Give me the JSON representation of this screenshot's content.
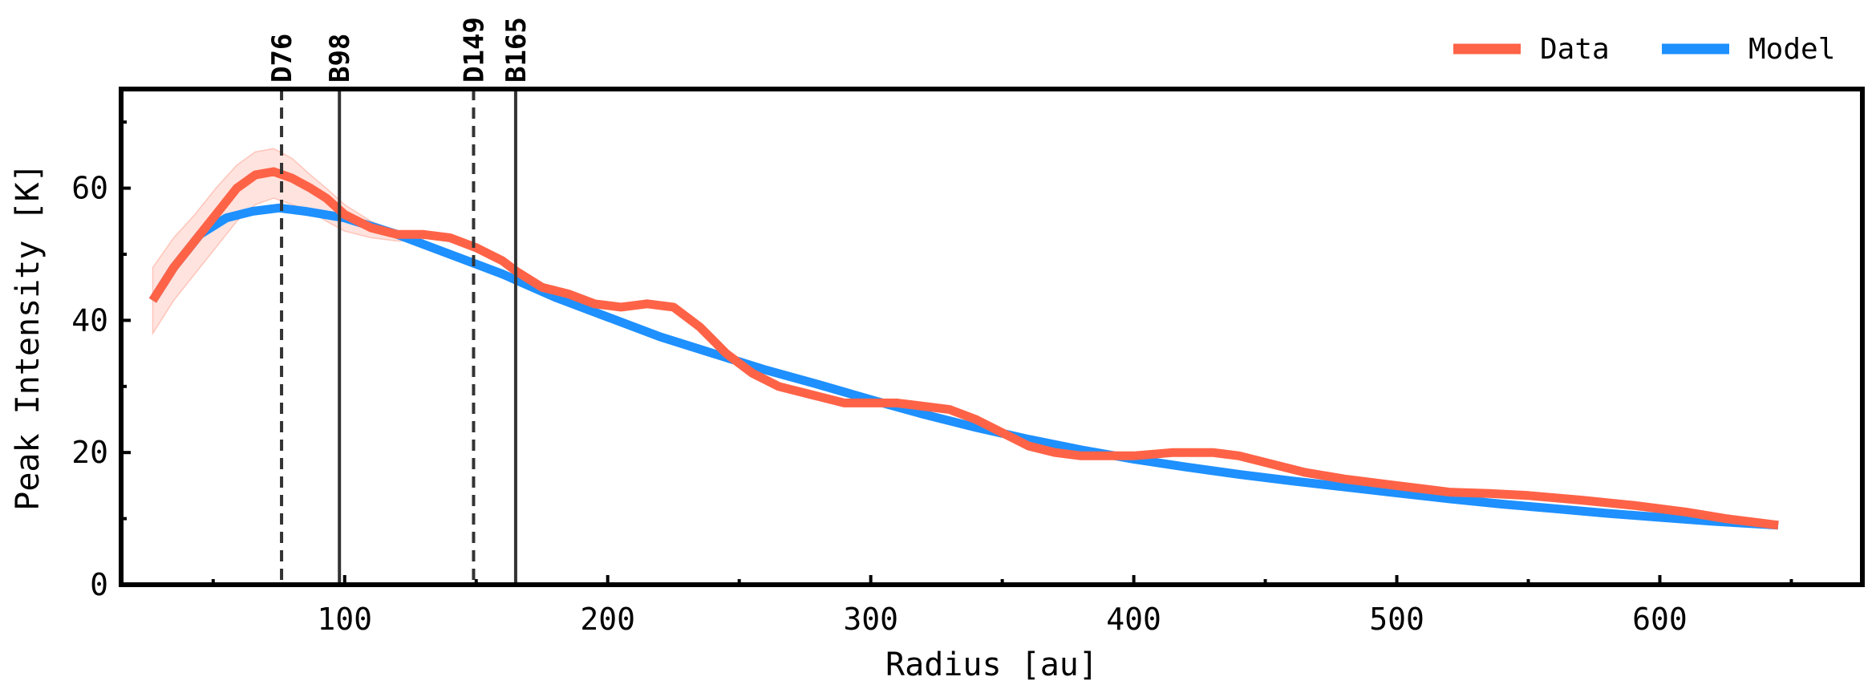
{
  "chart_data": {
    "type": "line",
    "xlabel": "Radius [au]",
    "ylabel": "Peak Intensity [K]",
    "xlim": [
      15,
      677
    ],
    "ylim": [
      0,
      75
    ],
    "xticks": [
      100,
      200,
      300,
      400,
      500,
      600
    ],
    "yticks": [
      0,
      20,
      40,
      60
    ],
    "grid": false,
    "legend_position": "top-right",
    "series": [
      {
        "name": "Data",
        "color": "#FF6347",
        "x": [
          27,
          35,
          43,
          51,
          59,
          66,
          73,
          80,
          87,
          93,
          100,
          110,
          120,
          130,
          140,
          150,
          160,
          165,
          175,
          185,
          195,
          205,
          215,
          225,
          235,
          245,
          255,
          265,
          280,
          290,
          300,
          310,
          320,
          330,
          340,
          350,
          360,
          370,
          380,
          390,
          400,
          415,
          430,
          440,
          450,
          465,
          480,
          500,
          520,
          535,
          550,
          570,
          590,
          610,
          625,
          645
        ],
        "y": [
          43,
          48,
          52,
          56,
          60,
          62,
          62.5,
          61.5,
          60,
          58.5,
          56,
          54,
          53,
          53,
          52.5,
          51,
          49,
          47.5,
          45,
          44,
          42.5,
          42,
          42.5,
          42,
          39,
          35,
          32,
          30,
          28.5,
          27.5,
          27.5,
          27.5,
          27,
          26.5,
          25,
          23,
          21,
          20,
          19.5,
          19.5,
          19.5,
          20,
          20,
          19.5,
          18.5,
          17,
          16,
          15,
          14,
          13.8,
          13.5,
          12.8,
          12,
          11,
          10,
          9
        ]
      },
      {
        "name": "Model",
        "color": "#1E90FF",
        "x": [
          27,
          35,
          45,
          55,
          65,
          75,
          85,
          100,
          120,
          140,
          160,
          180,
          200,
          220,
          240,
          260,
          280,
          300,
          320,
          340,
          360,
          380,
          400,
          420,
          440,
          460,
          480,
          500,
          520,
          540,
          560,
          580,
          600,
          620,
          645
        ],
        "y": [
          43,
          48,
          53,
          55.5,
          56.5,
          57,
          56.5,
          55.5,
          53,
          50,
          47,
          43.5,
          40.5,
          37.5,
          35,
          32.5,
          30.3,
          28,
          25.8,
          23.8,
          22,
          20.4,
          19,
          17.8,
          16.7,
          15.7,
          14.8,
          13.9,
          13,
          12.2,
          11.5,
          10.8,
          10.2,
          9.6,
          9
        ]
      }
    ],
    "data_band": {
      "x": [
        27,
        35,
        43,
        51,
        59,
        66,
        73,
        80,
        87,
        93,
        100,
        110,
        120,
        130
      ],
      "lower": [
        38,
        43,
        47,
        51,
        55,
        57.5,
        58.5,
        57.5,
        56.5,
        55,
        53.5,
        52.5,
        52,
        52
      ],
      "upper": [
        48,
        52.5,
        56,
        60,
        63.5,
        65.5,
        66,
        64.5,
        62,
        60,
        57.5,
        55,
        53.5,
        53.5
      ]
    },
    "ring_lines": [
      {
        "label": "D76",
        "x": 76,
        "style": "dashed"
      },
      {
        "label": "B98",
        "x": 98,
        "style": "solid"
      },
      {
        "label": "D149",
        "x": 149,
        "style": "dashed"
      },
      {
        "label": "B165",
        "x": 165,
        "style": "solid"
      }
    ]
  }
}
